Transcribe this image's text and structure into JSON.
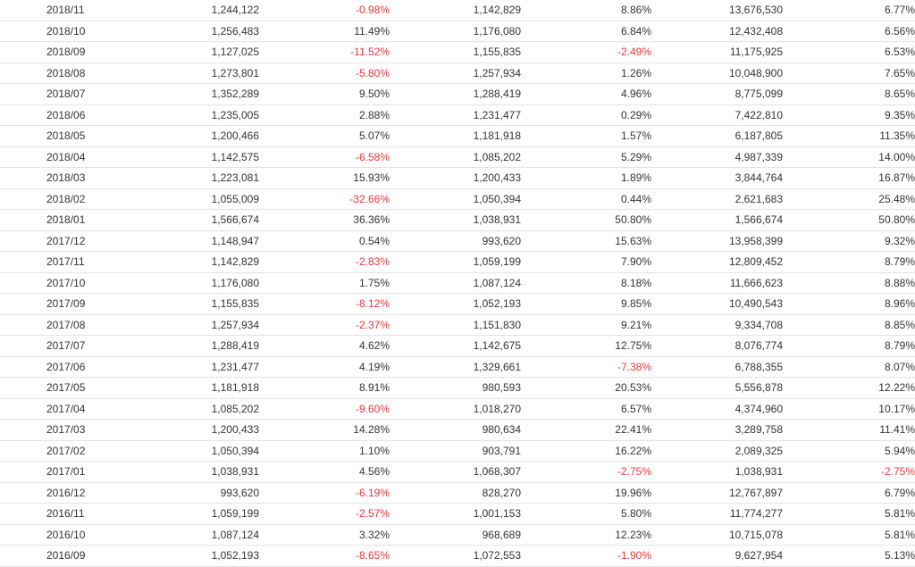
{
  "table": {
    "rows": [
      [
        "2018/11",
        "1,244,122",
        "-0.98%",
        "1,142,829",
        "8.86%",
        "13,676,530",
        "6.77%"
      ],
      [
        "2018/10",
        "1,256,483",
        "11.49%",
        "1,176,080",
        "6.84%",
        "12,432,408",
        "6.56%"
      ],
      [
        "2018/09",
        "1,127,025",
        "-11.52%",
        "1,155,835",
        "-2.49%",
        "11,175,925",
        "6.53%"
      ],
      [
        "2018/08",
        "1,273,801",
        "-5.80%",
        "1,257,934",
        "1.26%",
        "10,048,900",
        "7.65%"
      ],
      [
        "2018/07",
        "1,352,289",
        "9.50%",
        "1,288,419",
        "4.96%",
        "8,775,099",
        "8.65%"
      ],
      [
        "2018/06",
        "1,235,005",
        "2.88%",
        "1,231,477",
        "0.29%",
        "7,422,810",
        "9.35%"
      ],
      [
        "2018/05",
        "1,200,466",
        "5.07%",
        "1,181,918",
        "1.57%",
        "6,187,805",
        "11.35%"
      ],
      [
        "2018/04",
        "1,142,575",
        "-6.58%",
        "1,085,202",
        "5.29%",
        "4,987,339",
        "14.00%"
      ],
      [
        "2018/03",
        "1,223,081",
        "15.93%",
        "1,200,433",
        "1.89%",
        "3,844,764",
        "16.87%"
      ],
      [
        "2018/02",
        "1,055,009",
        "-32.66%",
        "1,050,394",
        "0.44%",
        "2,621,683",
        "25.48%"
      ],
      [
        "2018/01",
        "1,566,674",
        "36.36%",
        "1,038,931",
        "50.80%",
        "1,566,674",
        "50.80%"
      ],
      [
        "2017/12",
        "1,148,947",
        "0.54%",
        "993,620",
        "15.63%",
        "13,958,399",
        "9.32%"
      ],
      [
        "2017/11",
        "1,142,829",
        "-2.83%",
        "1,059,199",
        "7.90%",
        "12,809,452",
        "8.79%"
      ],
      [
        "2017/10",
        "1,176,080",
        "1.75%",
        "1,087,124",
        "8.18%",
        "11,666,623",
        "8.88%"
      ],
      [
        "2017/09",
        "1,155,835",
        "-8.12%",
        "1,052,193",
        "9.85%",
        "10,490,543",
        "8.96%"
      ],
      [
        "2017/08",
        "1,257,934",
        "-2.37%",
        "1,151,830",
        "9.21%",
        "9,334,708",
        "8.85%"
      ],
      [
        "2017/07",
        "1,288,419",
        "4.62%",
        "1,142,675",
        "12.75%",
        "8,076,774",
        "8.79%"
      ],
      [
        "2017/06",
        "1,231,477",
        "4.19%",
        "1,329,661",
        "-7.38%",
        "6,788,355",
        "8.07%"
      ],
      [
        "2017/05",
        "1,181,918",
        "8.91%",
        "980,593",
        "20.53%",
        "5,556,878",
        "12.22%"
      ],
      [
        "2017/04",
        "1,085,202",
        "-9.60%",
        "1,018,270",
        "6.57%",
        "4,374,960",
        "10.17%"
      ],
      [
        "2017/03",
        "1,200,433",
        "14.28%",
        "980,634",
        "22.41%",
        "3,289,758",
        "11.41%"
      ],
      [
        "2017/02",
        "1,050,394",
        "1.10%",
        "903,791",
        "16.22%",
        "2,089,325",
        "5.94%"
      ],
      [
        "2017/01",
        "1,038,931",
        "4.56%",
        "1,068,307",
        "-2.75%",
        "1,038,931",
        "-2.75%"
      ],
      [
        "2016/12",
        "993,620",
        "-6.19%",
        "828,270",
        "19.96%",
        "12,767,897",
        "6.79%"
      ],
      [
        "2016/11",
        "1,059,199",
        "-2.57%",
        "1,001,153",
        "5.80%",
        "11,774,277",
        "5.81%"
      ],
      [
        "2016/10",
        "1,087,124",
        "3.32%",
        "968,689",
        "12.23%",
        "10,715,078",
        "5.81%"
      ],
      [
        "2016/09",
        "1,052,193",
        "-8.65%",
        "1,072,553",
        "-1.90%",
        "9,627,954",
        "5.13%"
      ]
    ]
  },
  "colors": {
    "negative": "#e8383d",
    "text": "#333333",
    "row_border": "#e3e3e3"
  }
}
